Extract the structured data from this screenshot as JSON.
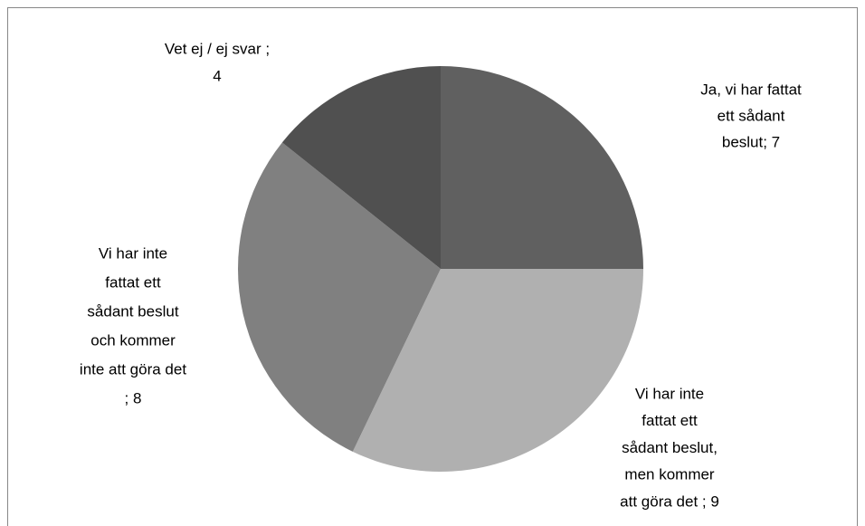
{
  "chart_data": {
    "type": "pie",
    "values": [
      7,
      9,
      8,
      4
    ],
    "value_labels": [
      [
        "Ja, vi har fattat",
        "ett sådant",
        "beslut; 7"
      ],
      [
        "Vi har inte",
        "fattat ett",
        "sådant beslut,",
        "men kommer",
        "att göra det ; 9"
      ],
      [
        "Vi har inte",
        "fattat ett",
        "sådant beslut",
        "och kommer",
        "inte att göra det",
        "; 8"
      ],
      [
        "Vet ej / ej svar ;",
        "4"
      ]
    ],
    "colors": [
      "#606060",
      "#b0b0b0",
      "#808080",
      "#505050"
    ]
  }
}
